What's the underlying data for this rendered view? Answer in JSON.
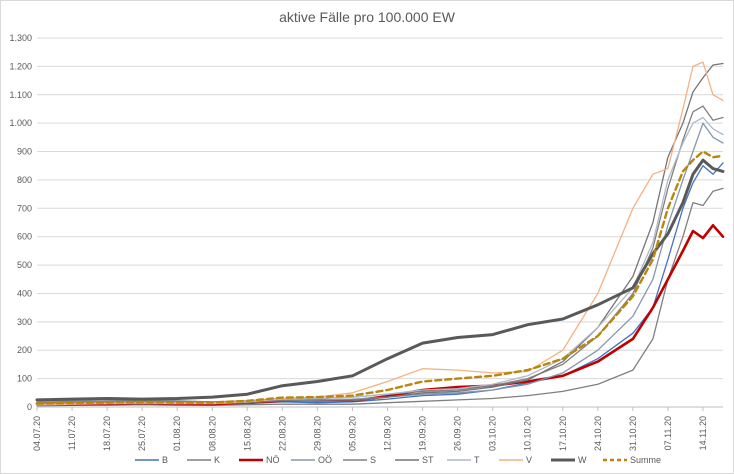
{
  "chart_data": {
    "type": "line",
    "title": "aktive Fälle pro 100.000 EW",
    "xlabel": "",
    "ylabel": "",
    "ylim": [
      0,
      1300
    ],
    "y_ticks": [
      0,
      100,
      200,
      300,
      400,
      500,
      600,
      700,
      800,
      900,
      1000,
      1100,
      1200,
      1300
    ],
    "y_tick_labels": [
      "0",
      "100",
      "200",
      "300",
      "400",
      "500",
      "600",
      "700",
      "800",
      "900",
      "1.000",
      "1.100",
      "1.200",
      "1.300"
    ],
    "x_range": [
      "2020-07-04",
      "2020-11-18"
    ],
    "x_tick_labels": [
      "04.07.20",
      "11.07.20",
      "18.07.20",
      "25.07.20",
      "01.08.20",
      "08.08.20",
      "15.08.20",
      "22.08.20",
      "29.08.20",
      "05.09.20",
      "12.09.20",
      "19.09.20",
      "26.09.20",
      "03.10.20",
      "10.10.20",
      "17.10.20",
      "24.10.20",
      "31.10.20",
      "07.11.20",
      "14.11.20"
    ],
    "grid": true,
    "legend_position": "bottom",
    "series": [
      {
        "name": "B",
        "color": "#4472c4",
        "width": 1.3,
        "dash": "",
        "points": [
          [
            "2020-07-04",
            5
          ],
          [
            "2020-07-11",
            6
          ],
          [
            "2020-07-18",
            8
          ],
          [
            "2020-07-25",
            10
          ],
          [
            "2020-08-01",
            9
          ],
          [
            "2020-08-08",
            8
          ],
          [
            "2020-08-15",
            12
          ],
          [
            "2020-08-22",
            18
          ],
          [
            "2020-08-29",
            15
          ],
          [
            "2020-09-05",
            18
          ],
          [
            "2020-09-12",
            28
          ],
          [
            "2020-09-19",
            40
          ],
          [
            "2020-09-26",
            45
          ],
          [
            "2020-10-03",
            60
          ],
          [
            "2020-10-10",
            85
          ],
          [
            "2020-10-17",
            110
          ],
          [
            "2020-10-24",
            170
          ],
          [
            "2020-10-31",
            260
          ],
          [
            "2020-11-04",
            350
          ],
          [
            "2020-11-07",
            520
          ],
          [
            "2020-11-10",
            700
          ],
          [
            "2020-11-12",
            790
          ],
          [
            "2020-11-14",
            850
          ],
          [
            "2020-11-16",
            820
          ],
          [
            "2020-11-18",
            860
          ]
        ]
      },
      {
        "name": "K",
        "color": "#7f7f7f",
        "width": 1.3,
        "dash": "",
        "points": [
          [
            "2020-07-04",
            5
          ],
          [
            "2020-07-11",
            6
          ],
          [
            "2020-07-18",
            6
          ],
          [
            "2020-07-25",
            8
          ],
          [
            "2020-08-01",
            6
          ],
          [
            "2020-08-08",
            6
          ],
          [
            "2020-08-15",
            8
          ],
          [
            "2020-08-22",
            10
          ],
          [
            "2020-08-29",
            10
          ],
          [
            "2020-09-05",
            10
          ],
          [
            "2020-09-12",
            15
          ],
          [
            "2020-09-19",
            20
          ],
          [
            "2020-09-26",
            25
          ],
          [
            "2020-10-03",
            30
          ],
          [
            "2020-10-10",
            40
          ],
          [
            "2020-10-17",
            55
          ],
          [
            "2020-10-24",
            80
          ],
          [
            "2020-10-31",
            130
          ],
          [
            "2020-11-04",
            240
          ],
          [
            "2020-11-07",
            450
          ],
          [
            "2020-11-10",
            600
          ],
          [
            "2020-11-12",
            720
          ],
          [
            "2020-11-14",
            710
          ],
          [
            "2020-11-16",
            760
          ],
          [
            "2020-11-18",
            770
          ]
        ]
      },
      {
        "name": "NÖ",
        "color": "#c00000",
        "width": 2.6,
        "dash": "",
        "points": [
          [
            "2020-07-04",
            12
          ],
          [
            "2020-07-11",
            10
          ],
          [
            "2020-07-18",
            12
          ],
          [
            "2020-07-25",
            14
          ],
          [
            "2020-08-01",
            12
          ],
          [
            "2020-08-08",
            10
          ],
          [
            "2020-08-15",
            16
          ],
          [
            "2020-08-22",
            22
          ],
          [
            "2020-08-29",
            25
          ],
          [
            "2020-09-05",
            22
          ],
          [
            "2020-09-12",
            38
          ],
          [
            "2020-09-19",
            60
          ],
          [
            "2020-09-26",
            70
          ],
          [
            "2020-10-03",
            75
          ],
          [
            "2020-10-10",
            90
          ],
          [
            "2020-10-17",
            110
          ],
          [
            "2020-10-24",
            160
          ],
          [
            "2020-10-31",
            240
          ],
          [
            "2020-11-04",
            350
          ],
          [
            "2020-11-07",
            450
          ],
          [
            "2020-11-10",
            550
          ],
          [
            "2020-11-12",
            620
          ],
          [
            "2020-11-14",
            595
          ],
          [
            "2020-11-16",
            640
          ],
          [
            "2020-11-18",
            600
          ]
        ]
      },
      {
        "name": "OÖ",
        "color": "#8497b0",
        "width": 1.3,
        "dash": "",
        "points": [
          [
            "2020-07-04",
            20
          ],
          [
            "2020-07-11",
            22
          ],
          [
            "2020-07-18",
            25
          ],
          [
            "2020-07-25",
            25
          ],
          [
            "2020-08-01",
            22
          ],
          [
            "2020-08-08",
            18
          ],
          [
            "2020-08-15",
            20
          ],
          [
            "2020-08-22",
            25
          ],
          [
            "2020-08-29",
            25
          ],
          [
            "2020-09-05",
            28
          ],
          [
            "2020-09-12",
            35
          ],
          [
            "2020-09-19",
            45
          ],
          [
            "2020-09-26",
            50
          ],
          [
            "2020-10-03",
            60
          ],
          [
            "2020-10-10",
            80
          ],
          [
            "2020-10-17",
            120
          ],
          [
            "2020-10-24",
            200
          ],
          [
            "2020-10-31",
            320
          ],
          [
            "2020-11-04",
            450
          ],
          [
            "2020-11-07",
            640
          ],
          [
            "2020-11-10",
            800
          ],
          [
            "2020-11-12",
            900
          ],
          [
            "2020-11-14",
            1000
          ],
          [
            "2020-11-16",
            950
          ],
          [
            "2020-11-18",
            930
          ]
        ]
      },
      {
        "name": "S",
        "color": "#808080",
        "width": 1.3,
        "dash": "",
        "points": [
          [
            "2020-07-04",
            15
          ],
          [
            "2020-07-11",
            18
          ],
          [
            "2020-07-18",
            20
          ],
          [
            "2020-07-25",
            22
          ],
          [
            "2020-08-01",
            20
          ],
          [
            "2020-08-08",
            18
          ],
          [
            "2020-08-15",
            22
          ],
          [
            "2020-08-22",
            30
          ],
          [
            "2020-08-29",
            30
          ],
          [
            "2020-09-05",
            35
          ],
          [
            "2020-09-12",
            45
          ],
          [
            "2020-09-19",
            55
          ],
          [
            "2020-09-26",
            60
          ],
          [
            "2020-10-03",
            75
          ],
          [
            "2020-10-10",
            100
          ],
          [
            "2020-10-17",
            150
          ],
          [
            "2020-10-24",
            250
          ],
          [
            "2020-10-31",
            400
          ],
          [
            "2020-11-04",
            560
          ],
          [
            "2020-11-07",
            770
          ],
          [
            "2020-11-10",
            940
          ],
          [
            "2020-11-12",
            1040
          ],
          [
            "2020-11-14",
            1060
          ],
          [
            "2020-11-16",
            1010
          ],
          [
            "2020-11-18",
            1020
          ]
        ]
      },
      {
        "name": "ST",
        "color": "#757575",
        "width": 1.3,
        "dash": "",
        "points": [
          [
            "2020-07-04",
            10
          ],
          [
            "2020-07-11",
            12
          ],
          [
            "2020-07-18",
            15
          ],
          [
            "2020-07-25",
            18
          ],
          [
            "2020-08-01",
            15
          ],
          [
            "2020-08-08",
            12
          ],
          [
            "2020-08-15",
            15
          ],
          [
            "2020-08-22",
            22
          ],
          [
            "2020-08-29",
            20
          ],
          [
            "2020-09-05",
            22
          ],
          [
            "2020-09-12",
            35
          ],
          [
            "2020-09-19",
            50
          ],
          [
            "2020-09-26",
            55
          ],
          [
            "2020-10-03",
            70
          ],
          [
            "2020-10-10",
            95
          ],
          [
            "2020-10-17",
            160
          ],
          [
            "2020-10-24",
            280
          ],
          [
            "2020-10-31",
            460
          ],
          [
            "2020-11-04",
            650
          ],
          [
            "2020-11-07",
            880
          ],
          [
            "2020-11-10",
            1000
          ],
          [
            "2020-11-12",
            1110
          ],
          [
            "2020-11-14",
            1160
          ],
          [
            "2020-11-16",
            1205
          ],
          [
            "2020-11-18",
            1210
          ]
        ]
      },
      {
        "name": "T",
        "color": "#adb9ca",
        "width": 1.3,
        "dash": "",
        "points": [
          [
            "2020-07-04",
            10
          ],
          [
            "2020-07-11",
            12
          ],
          [
            "2020-07-18",
            14
          ],
          [
            "2020-07-25",
            16
          ],
          [
            "2020-08-01",
            15
          ],
          [
            "2020-08-08",
            15
          ],
          [
            "2020-08-15",
            20
          ],
          [
            "2020-08-22",
            28
          ],
          [
            "2020-08-29",
            30
          ],
          [
            "2020-09-05",
            35
          ],
          [
            "2020-09-12",
            45
          ],
          [
            "2020-09-19",
            60
          ],
          [
            "2020-09-26",
            65
          ],
          [
            "2020-10-03",
            80
          ],
          [
            "2020-10-10",
            110
          ],
          [
            "2020-10-17",
            170
          ],
          [
            "2020-10-24",
            280
          ],
          [
            "2020-10-31",
            420
          ],
          [
            "2020-11-04",
            580
          ],
          [
            "2020-11-07",
            800
          ],
          [
            "2020-11-10",
            930
          ],
          [
            "2020-11-12",
            1000
          ],
          [
            "2020-11-14",
            1020
          ],
          [
            "2020-11-16",
            980
          ],
          [
            "2020-11-18",
            960
          ]
        ]
      },
      {
        "name": "V",
        "color": "#f4b183",
        "width": 1.3,
        "dash": "",
        "points": [
          [
            "2020-07-04",
            8
          ],
          [
            "2020-07-11",
            10
          ],
          [
            "2020-07-18",
            12
          ],
          [
            "2020-07-25",
            14
          ],
          [
            "2020-08-01",
            12
          ],
          [
            "2020-08-08",
            12
          ],
          [
            "2020-08-15",
            18
          ],
          [
            "2020-08-22",
            30
          ],
          [
            "2020-08-29",
            35
          ],
          [
            "2020-09-05",
            50
          ],
          [
            "2020-09-12",
            90
          ],
          [
            "2020-09-19",
            135
          ],
          [
            "2020-09-26",
            130
          ],
          [
            "2020-10-03",
            120
          ],
          [
            "2020-10-10",
            125
          ],
          [
            "2020-10-17",
            200
          ],
          [
            "2020-10-24",
            400
          ],
          [
            "2020-10-31",
            700
          ],
          [
            "2020-11-04",
            820
          ],
          [
            "2020-11-07",
            840
          ],
          [
            "2020-11-10",
            1050
          ],
          [
            "2020-11-12",
            1200
          ],
          [
            "2020-11-14",
            1215
          ],
          [
            "2020-11-16",
            1100
          ],
          [
            "2020-11-18",
            1080
          ]
        ]
      },
      {
        "name": "W",
        "color": "#595959",
        "width": 3,
        "dash": "",
        "points": [
          [
            "2020-07-04",
            25
          ],
          [
            "2020-07-11",
            28
          ],
          [
            "2020-07-18",
            30
          ],
          [
            "2020-07-25",
            28
          ],
          [
            "2020-08-01",
            30
          ],
          [
            "2020-08-08",
            35
          ],
          [
            "2020-08-15",
            45
          ],
          [
            "2020-08-22",
            75
          ],
          [
            "2020-08-29",
            90
          ],
          [
            "2020-09-05",
            110
          ],
          [
            "2020-09-12",
            170
          ],
          [
            "2020-09-19",
            225
          ],
          [
            "2020-09-26",
            245
          ],
          [
            "2020-10-03",
            255
          ],
          [
            "2020-10-10",
            290
          ],
          [
            "2020-10-17",
            310
          ],
          [
            "2020-10-24",
            360
          ],
          [
            "2020-10-31",
            420
          ],
          [
            "2020-11-04",
            540
          ],
          [
            "2020-11-07",
            610
          ],
          [
            "2020-11-10",
            720
          ],
          [
            "2020-11-12",
            820
          ],
          [
            "2020-11-14",
            870
          ],
          [
            "2020-11-16",
            840
          ],
          [
            "2020-11-18",
            830
          ]
        ]
      },
      {
        "name": "Summe",
        "color": "#b8860b",
        "width": 2.4,
        "dash": "6,4",
        "points": [
          [
            "2020-07-04",
            12
          ],
          [
            "2020-07-11",
            14
          ],
          [
            "2020-07-18",
            16
          ],
          [
            "2020-07-25",
            18
          ],
          [
            "2020-08-01",
            16
          ],
          [
            "2020-08-08",
            16
          ],
          [
            "2020-08-15",
            22
          ],
          [
            "2020-08-22",
            33
          ],
          [
            "2020-08-29",
            35
          ],
          [
            "2020-09-05",
            40
          ],
          [
            "2020-09-12",
            60
          ],
          [
            "2020-09-19",
            90
          ],
          [
            "2020-09-26",
            100
          ],
          [
            "2020-10-03",
            110
          ],
          [
            "2020-10-10",
            130
          ],
          [
            "2020-10-17",
            170
          ],
          [
            "2020-10-24",
            250
          ],
          [
            "2020-10-31",
            390
          ],
          [
            "2020-11-04",
            520
          ],
          [
            "2020-11-07",
            700
          ],
          [
            "2020-11-10",
            830
          ],
          [
            "2020-11-12",
            870
          ],
          [
            "2020-11-14",
            900
          ],
          [
            "2020-11-16",
            880
          ],
          [
            "2020-11-18",
            885
          ]
        ]
      }
    ]
  }
}
